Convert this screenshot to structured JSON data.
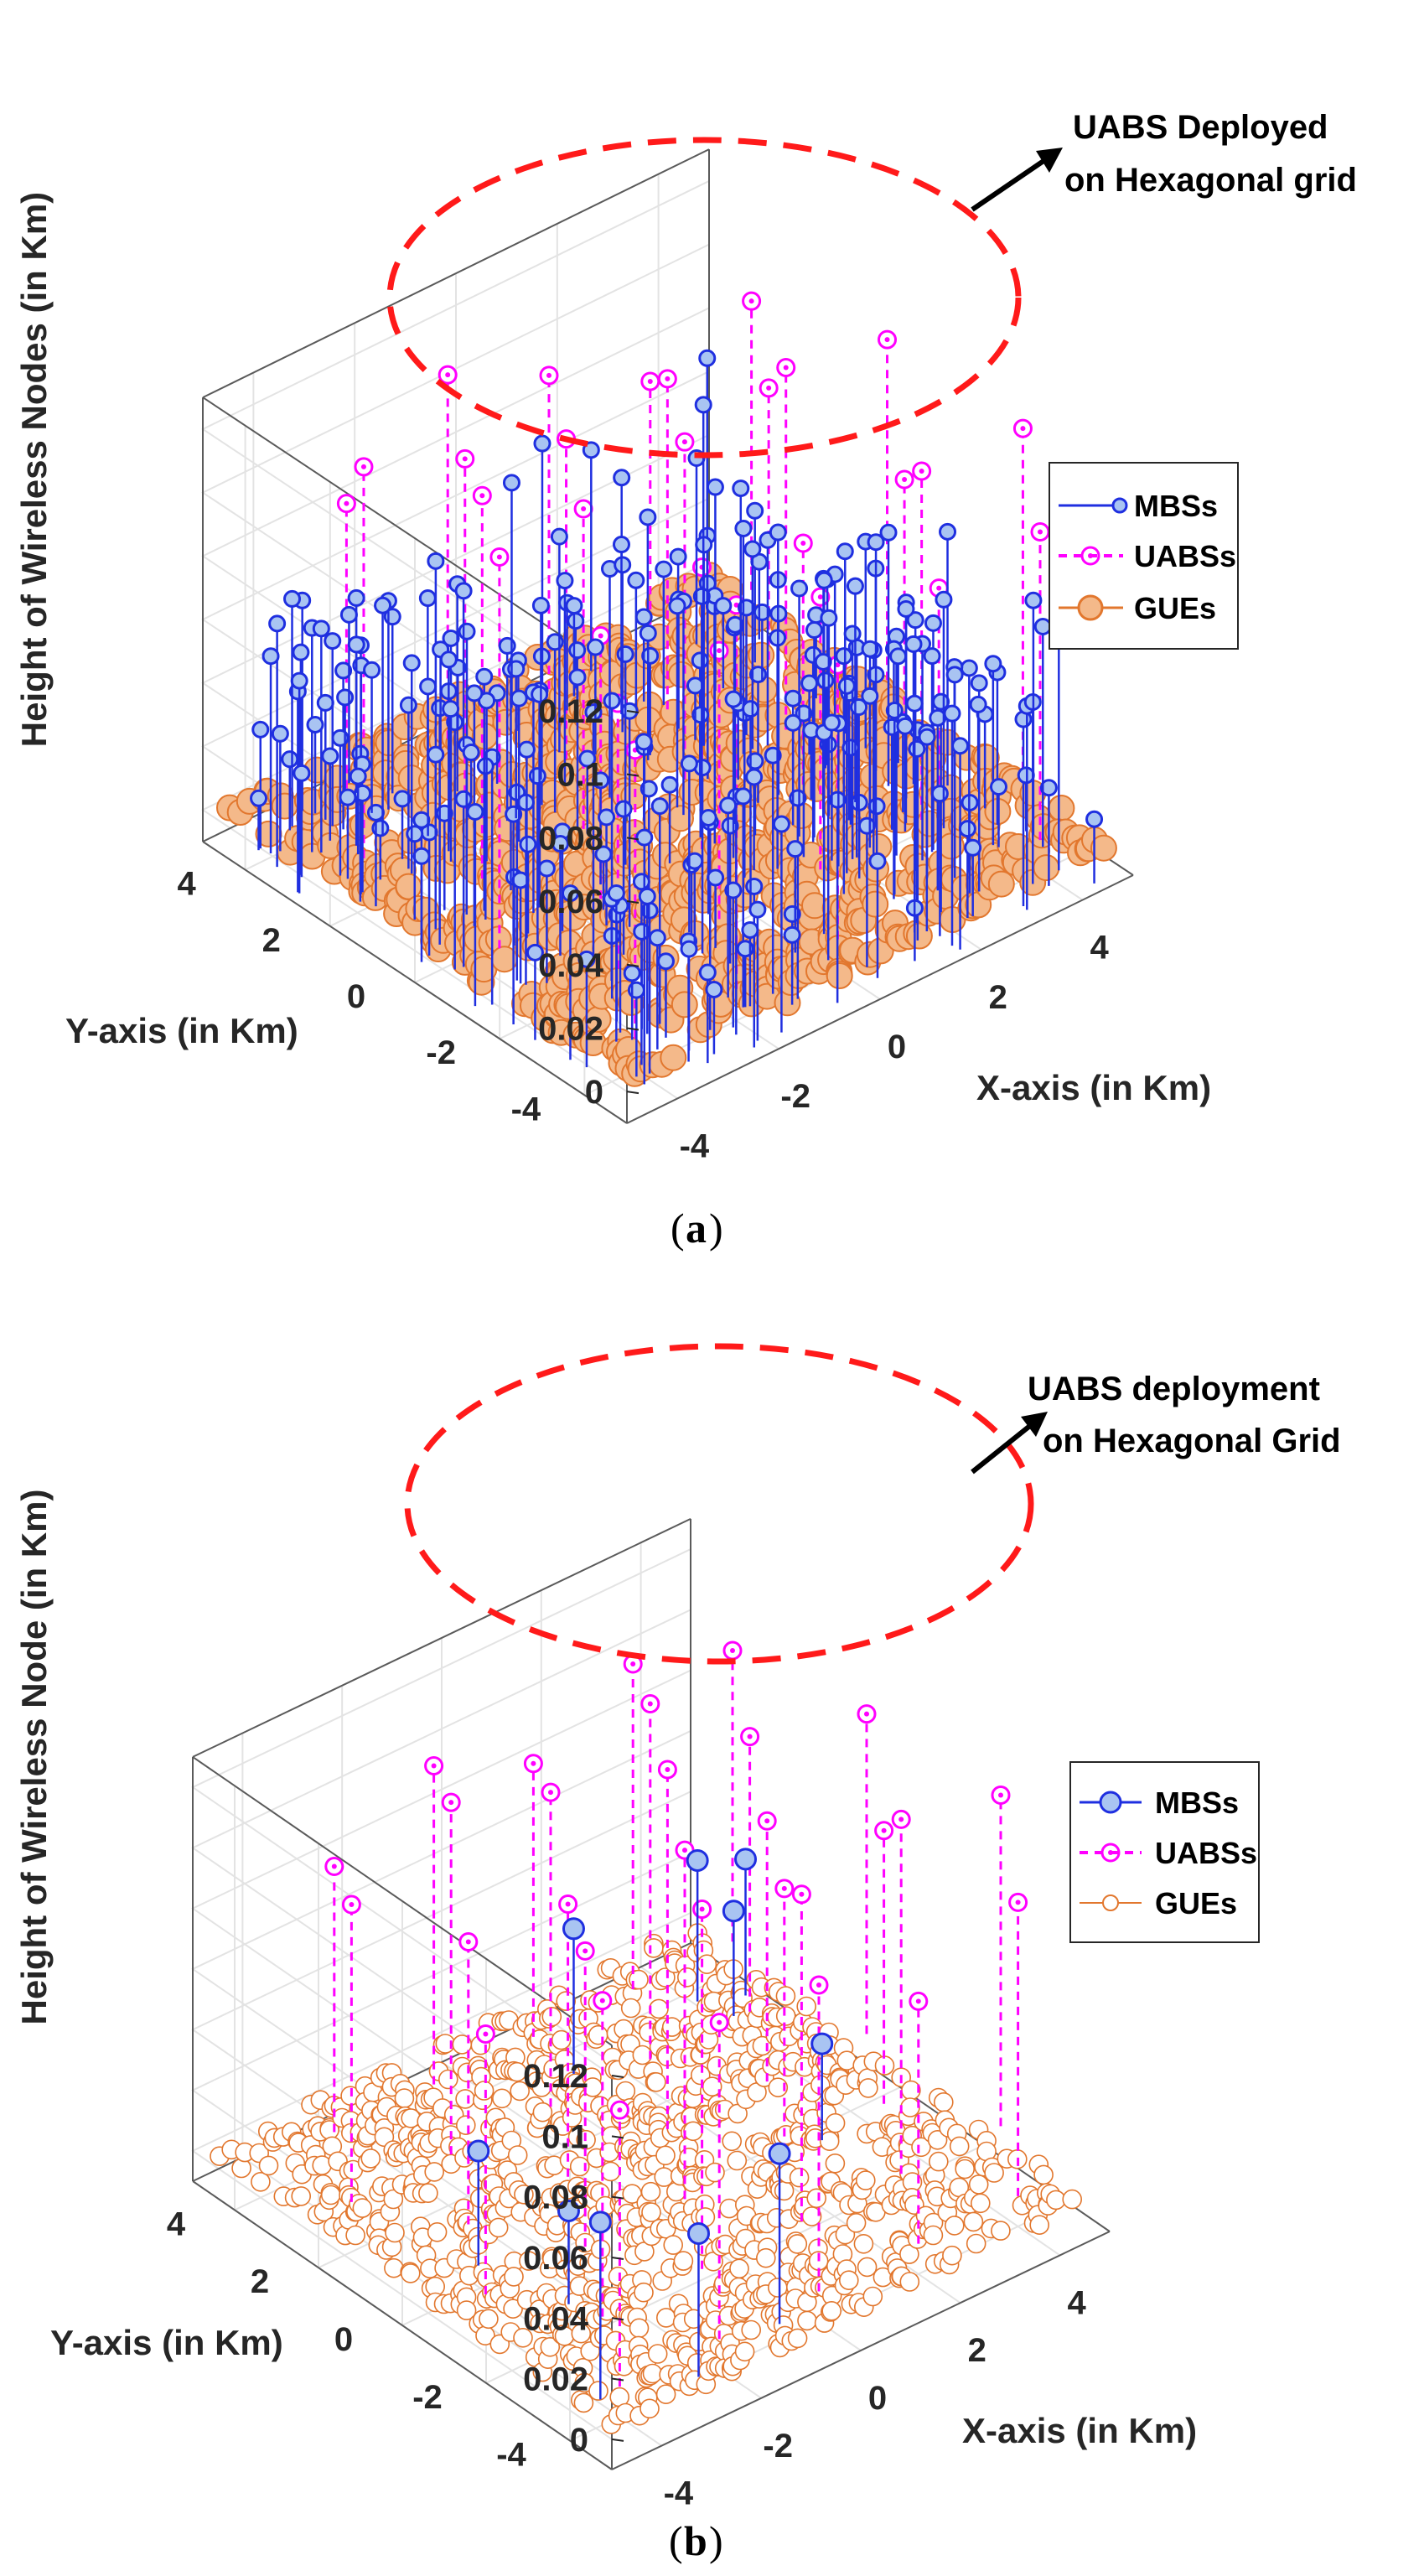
{
  "chart_data": [
    {
      "type": "scatter",
      "subtype": "3d-stem",
      "panel_label": "a",
      "title": "",
      "xlabel": "X-axis (in Km)",
      "ylabel": "Y-axis (in Km)",
      "zlabel": "Height of Wireless Nodes (in Km)",
      "xlim": [
        -5,
        5
      ],
      "ylim": [
        -5,
        5
      ],
      "zlim": [
        -0.01,
        0.13
      ],
      "x_ticks": [
        "-4",
        "-2",
        "0",
        "2",
        "4"
      ],
      "y_ticks": [
        "-4",
        "-2",
        "0",
        "2",
        "4"
      ],
      "z_ticks": [
        "0",
        "0.02",
        "0.04",
        "0.06",
        "0.08",
        "0.1",
        "0.12"
      ],
      "grid": true,
      "legend": {
        "placement": "right",
        "entries": [
          {
            "name": "MBSs",
            "style": "solid",
            "color": "#1f2fe0"
          },
          {
            "name": "UABSs",
            "style": "dashed",
            "color": "#ff00ff"
          },
          {
            "name": "GUEs",
            "style": "filled-circle",
            "color": "#e2772e"
          }
        ]
      },
      "annotation": "UABS Deployed on Hexagonal grid",
      "annotation_lines": [
        "UABS Deployed",
        "on Hexagonal grid"
      ],
      "series": [
        {
          "name": "MBSs",
          "count": 300,
          "z_range_km": [
            0.005,
            0.07
          ]
        },
        {
          "name": "UABSs",
          "count": 30,
          "z_range_km": [
            0.08,
            0.125
          ],
          "layout": "hexagonal grid"
        },
        {
          "name": "GUEs",
          "count": 1000,
          "z_km": 0
        }
      ]
    },
    {
      "type": "scatter",
      "subtype": "3d-stem",
      "panel_label": "b",
      "title": "",
      "xlabel": "X-axis (in Km)",
      "ylabel": "Y-axis (in Km)",
      "zlabel": "Height of Wireless Node (in Km)",
      "xlim": [
        -5,
        5
      ],
      "ylim": [
        -5,
        5
      ],
      "zlim": [
        -0.01,
        0.13
      ],
      "x_ticks": [
        "-4",
        "-2",
        "0",
        "2",
        "4"
      ],
      "y_ticks": [
        "-4",
        "-2",
        "0",
        "2",
        "4"
      ],
      "z_ticks": [
        "0",
        "0.02",
        "0.04",
        "0.06",
        "0.08",
        "0.1",
        "0.12"
      ],
      "grid": true,
      "legend": {
        "placement": "right",
        "entries": [
          {
            "name": "MBSs",
            "style": "solid",
            "color": "#1f2fe0"
          },
          {
            "name": "UABSs",
            "style": "dashed",
            "color": "#ff00ff"
          },
          {
            "name": "GUEs",
            "style": "hollow-circle",
            "color": "#e2772e"
          }
        ]
      },
      "annotation": "UABS deployment on Hexagonal Grid",
      "annotation_lines": [
        "UABS deployment",
        "on Hexagonal Grid"
      ],
      "series": [
        {
          "name": "MBSs",
          "count": 10,
          "z_range_km": [
            0.02,
            0.05
          ]
        },
        {
          "name": "UABSs",
          "count": 30,
          "z_range_km": [
            0.08,
            0.125
          ],
          "layout": "hexagonal grid"
        },
        {
          "name": "GUEs",
          "count": 1000,
          "z_km": 0
        }
      ]
    }
  ],
  "colors": {
    "mbs": "#1f2fe0",
    "mbs_fill": "#a9c4f2",
    "uabs": "#ff00ff",
    "gue": "#e2772e",
    "gue_fill": "#f4b98a",
    "ellipse": "#ff1a1a",
    "grid": "#e3e3e3",
    "axis": "#262626"
  }
}
